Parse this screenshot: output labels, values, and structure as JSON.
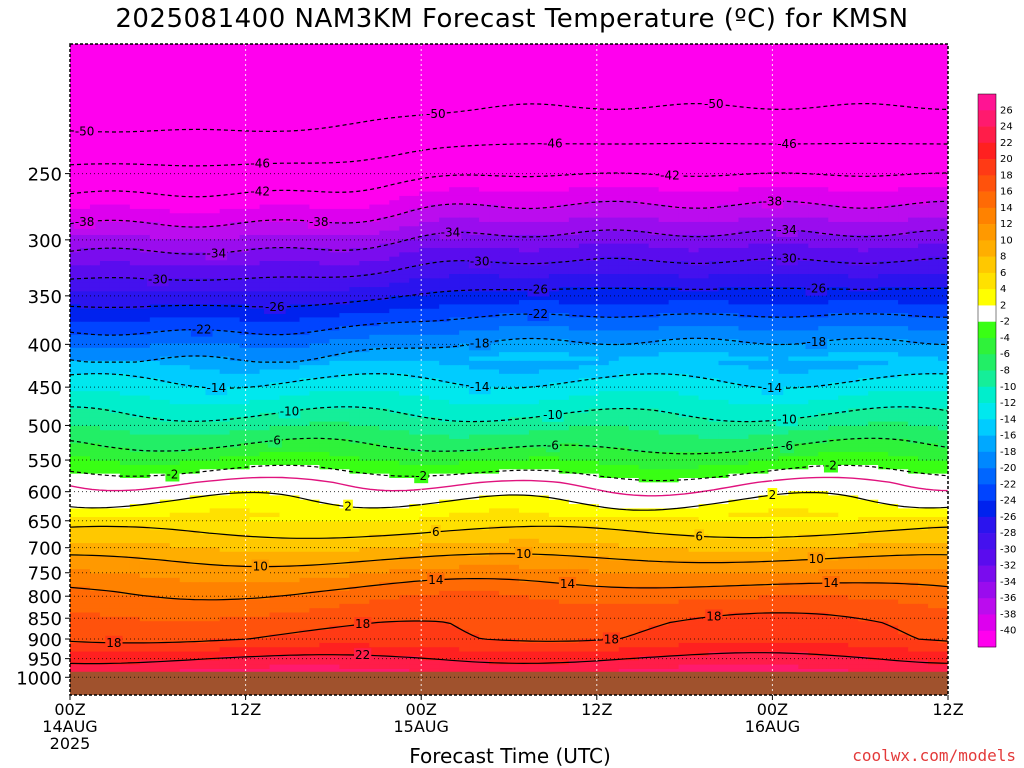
{
  "title": "2025081400 NAM3KM Forecast Temperature (ºC) for KMSN",
  "footer": "coolwx.com/models",
  "colors": {
    "ground": "#a0522d",
    "contour": "#000000",
    "freezing_line": "#e0137e"
  },
  "chart_data": {
    "type": "heatmap",
    "title": "2025081400 NAM3KM Forecast Temperature (ºC) for KMSN",
    "xlabel": "Forecast Time (UTC)",
    "ylabel": "",
    "x_axis": {
      "hours_range": [
        0,
        60
      ],
      "ticks": [
        {
          "hour": 0,
          "label": "00Z",
          "date": "14AUG",
          "year": "2025"
        },
        {
          "hour": 12,
          "label": "12Z",
          "date": "",
          "year": ""
        },
        {
          "hour": 24,
          "label": "00Z",
          "date": "15AUG",
          "year": ""
        },
        {
          "hour": 36,
          "label": "12Z",
          "date": "",
          "year": ""
        },
        {
          "hour": 48,
          "label": "00Z",
          "date": "16AUG",
          "year": ""
        },
        {
          "hour": 60,
          "label": "12Z",
          "date": "",
          "year": ""
        }
      ]
    },
    "y_axis": {
      "unit": "hPa",
      "range_top": 175,
      "range_bottom": 1050,
      "scale": "log",
      "ticks": [
        250,
        300,
        350,
        400,
        450,
        500,
        550,
        600,
        650,
        700,
        750,
        800,
        850,
        900,
        950,
        1000
      ]
    },
    "surface_pressure_hPa": 985,
    "grid": true,
    "colorbar": {
      "placement": "right",
      "labels": [
        26,
        24,
        22,
        20,
        18,
        16,
        14,
        12,
        10,
        8,
        6,
        4,
        2,
        -2,
        -4,
        -6,
        -8,
        -10,
        -12,
        -14,
        -16,
        -18,
        -20,
        -22,
        -24,
        -26,
        -28,
        -30,
        -32,
        -34,
        -36,
        -38,
        -40
      ],
      "colors": [
        "#ff1493",
        "#ff1a6e",
        "#ff1d49",
        "#ff2020",
        "#ff3a15",
        "#ff520c",
        "#ff6a05",
        "#ff8200",
        "#ff9900",
        "#ffae00",
        "#ffc800",
        "#ffe100",
        "#ffff00",
        "#ffffff",
        "#39ff14",
        "#2ff23a",
        "#22ee66",
        "#15ee99",
        "#00eecc",
        "#00e8ee",
        "#00ccff",
        "#00a8ff",
        "#0088ff",
        "#0066ff",
        "#0044ff",
        "#0022ee",
        "#2b14ee",
        "#4411ee",
        "#5a0cee",
        "#7a0cee",
        "#9a0cee",
        "#bb0cee",
        "#dd00ee",
        "#ff00ee"
      ]
    },
    "contours": [
      {
        "value": -50,
        "pressure": 215,
        "labels": [
          {
            "hour": 1,
            "text": "-50"
          },
          {
            "hour": 25,
            "text": "-50"
          },
          {
            "hour": 44,
            "text": "-50"
          }
        ]
      },
      {
        "value": -46,
        "pressure": 238,
        "labels": [
          {
            "hour": 13,
            "text": "-46"
          },
          {
            "hour": 33,
            "text": "-46"
          },
          {
            "hour": 49,
            "text": "-46"
          }
        ]
      },
      {
        "value": -42,
        "pressure": 257,
        "labels": [
          {
            "hour": 13,
            "text": "-42"
          },
          {
            "hour": 41,
            "text": "-42"
          }
        ]
      },
      {
        "value": -38,
        "pressure": 280,
        "labels": [
          {
            "hour": 1,
            "text": "-38"
          },
          {
            "hour": 17,
            "text": "-38"
          },
          {
            "hour": 48,
            "text": "-38"
          }
        ]
      },
      {
        "value": -34,
        "pressure": 302,
        "labels": [
          {
            "hour": 10,
            "text": "-34"
          },
          {
            "hour": 26,
            "text": "-34"
          },
          {
            "hour": 49,
            "text": "-34"
          }
        ]
      },
      {
        "value": -30,
        "pressure": 326,
        "labels": [
          {
            "hour": 6,
            "text": "-30"
          },
          {
            "hour": 28,
            "text": "-30"
          },
          {
            "hour": 49,
            "text": "-30"
          }
        ]
      },
      {
        "value": -26,
        "pressure": 352,
        "labels": [
          {
            "hour": 14,
            "text": "-26"
          },
          {
            "hour": 32,
            "text": "-26"
          },
          {
            "hour": 51,
            "text": "-26"
          }
        ]
      },
      {
        "value": -22,
        "pressure": 378,
        "labels": [
          {
            "hour": 9,
            "text": "-22"
          },
          {
            "hour": 32,
            "text": "-22"
          }
        ]
      },
      {
        "value": -18,
        "pressure": 406,
        "labels": [
          {
            "hour": 28,
            "text": "-18"
          },
          {
            "hour": 51,
            "text": "-18"
          }
        ]
      },
      {
        "value": -14,
        "pressure": 442,
        "labels": [
          {
            "hour": 10,
            "text": "-14"
          },
          {
            "hour": 28,
            "text": "-14"
          },
          {
            "hour": 48,
            "text": "-14"
          }
        ]
      },
      {
        "value": -10,
        "pressure": 485,
        "labels": [
          {
            "hour": 15,
            "text": "-10"
          },
          {
            "hour": 33,
            "text": "-10"
          },
          {
            "hour": 49,
            "text": "-10"
          }
        ]
      },
      {
        "value": -6,
        "pressure": 528,
        "labels": [
          {
            "hour": 14,
            "text": "-6"
          },
          {
            "hour": 33,
            "text": "-6"
          },
          {
            "hour": 49,
            "text": "-6"
          }
        ]
      },
      {
        "value": -2,
        "pressure": 567,
        "labels": [
          {
            "hour": 7,
            "text": "-2"
          },
          {
            "hour": 24,
            "text": "-2"
          },
          {
            "hour": 52,
            "text": "-2"
          }
        ]
      },
      {
        "value": 2,
        "pressure": 615,
        "labels": [
          {
            "hour": 19,
            "text": "2"
          },
          {
            "hour": 48,
            "text": "2"
          }
        ]
      },
      {
        "value": 6,
        "pressure": 672,
        "labels": [
          {
            "hour": 25,
            "text": "6"
          },
          {
            "hour": 43,
            "text": "6"
          }
        ]
      },
      {
        "value": 10,
        "pressure": 725,
        "labels": [
          {
            "hour": 13,
            "text": "10"
          },
          {
            "hour": 31,
            "text": "10"
          },
          {
            "hour": 51,
            "text": "10"
          }
        ]
      },
      {
        "value": 14,
        "pressure": 790,
        "labels": [
          {
            "hour": 25,
            "text": "14"
          },
          {
            "hour": 34,
            "text": "14"
          },
          {
            "hour": 52,
            "text": "14"
          }
        ]
      },
      {
        "value": 18,
        "pressure": 900,
        "labels": [
          {
            "hour": 3,
            "text": "18"
          },
          {
            "hour": 20,
            "text": "18"
          },
          {
            "hour": 37,
            "text": "18"
          },
          {
            "hour": 44,
            "text": "18"
          }
        ]
      },
      {
        "value": 22,
        "pressure": 950,
        "labels": [
          {
            "hour": 20,
            "text": "22"
          }
        ]
      }
    ],
    "freezing_line_pressure": 585
  }
}
